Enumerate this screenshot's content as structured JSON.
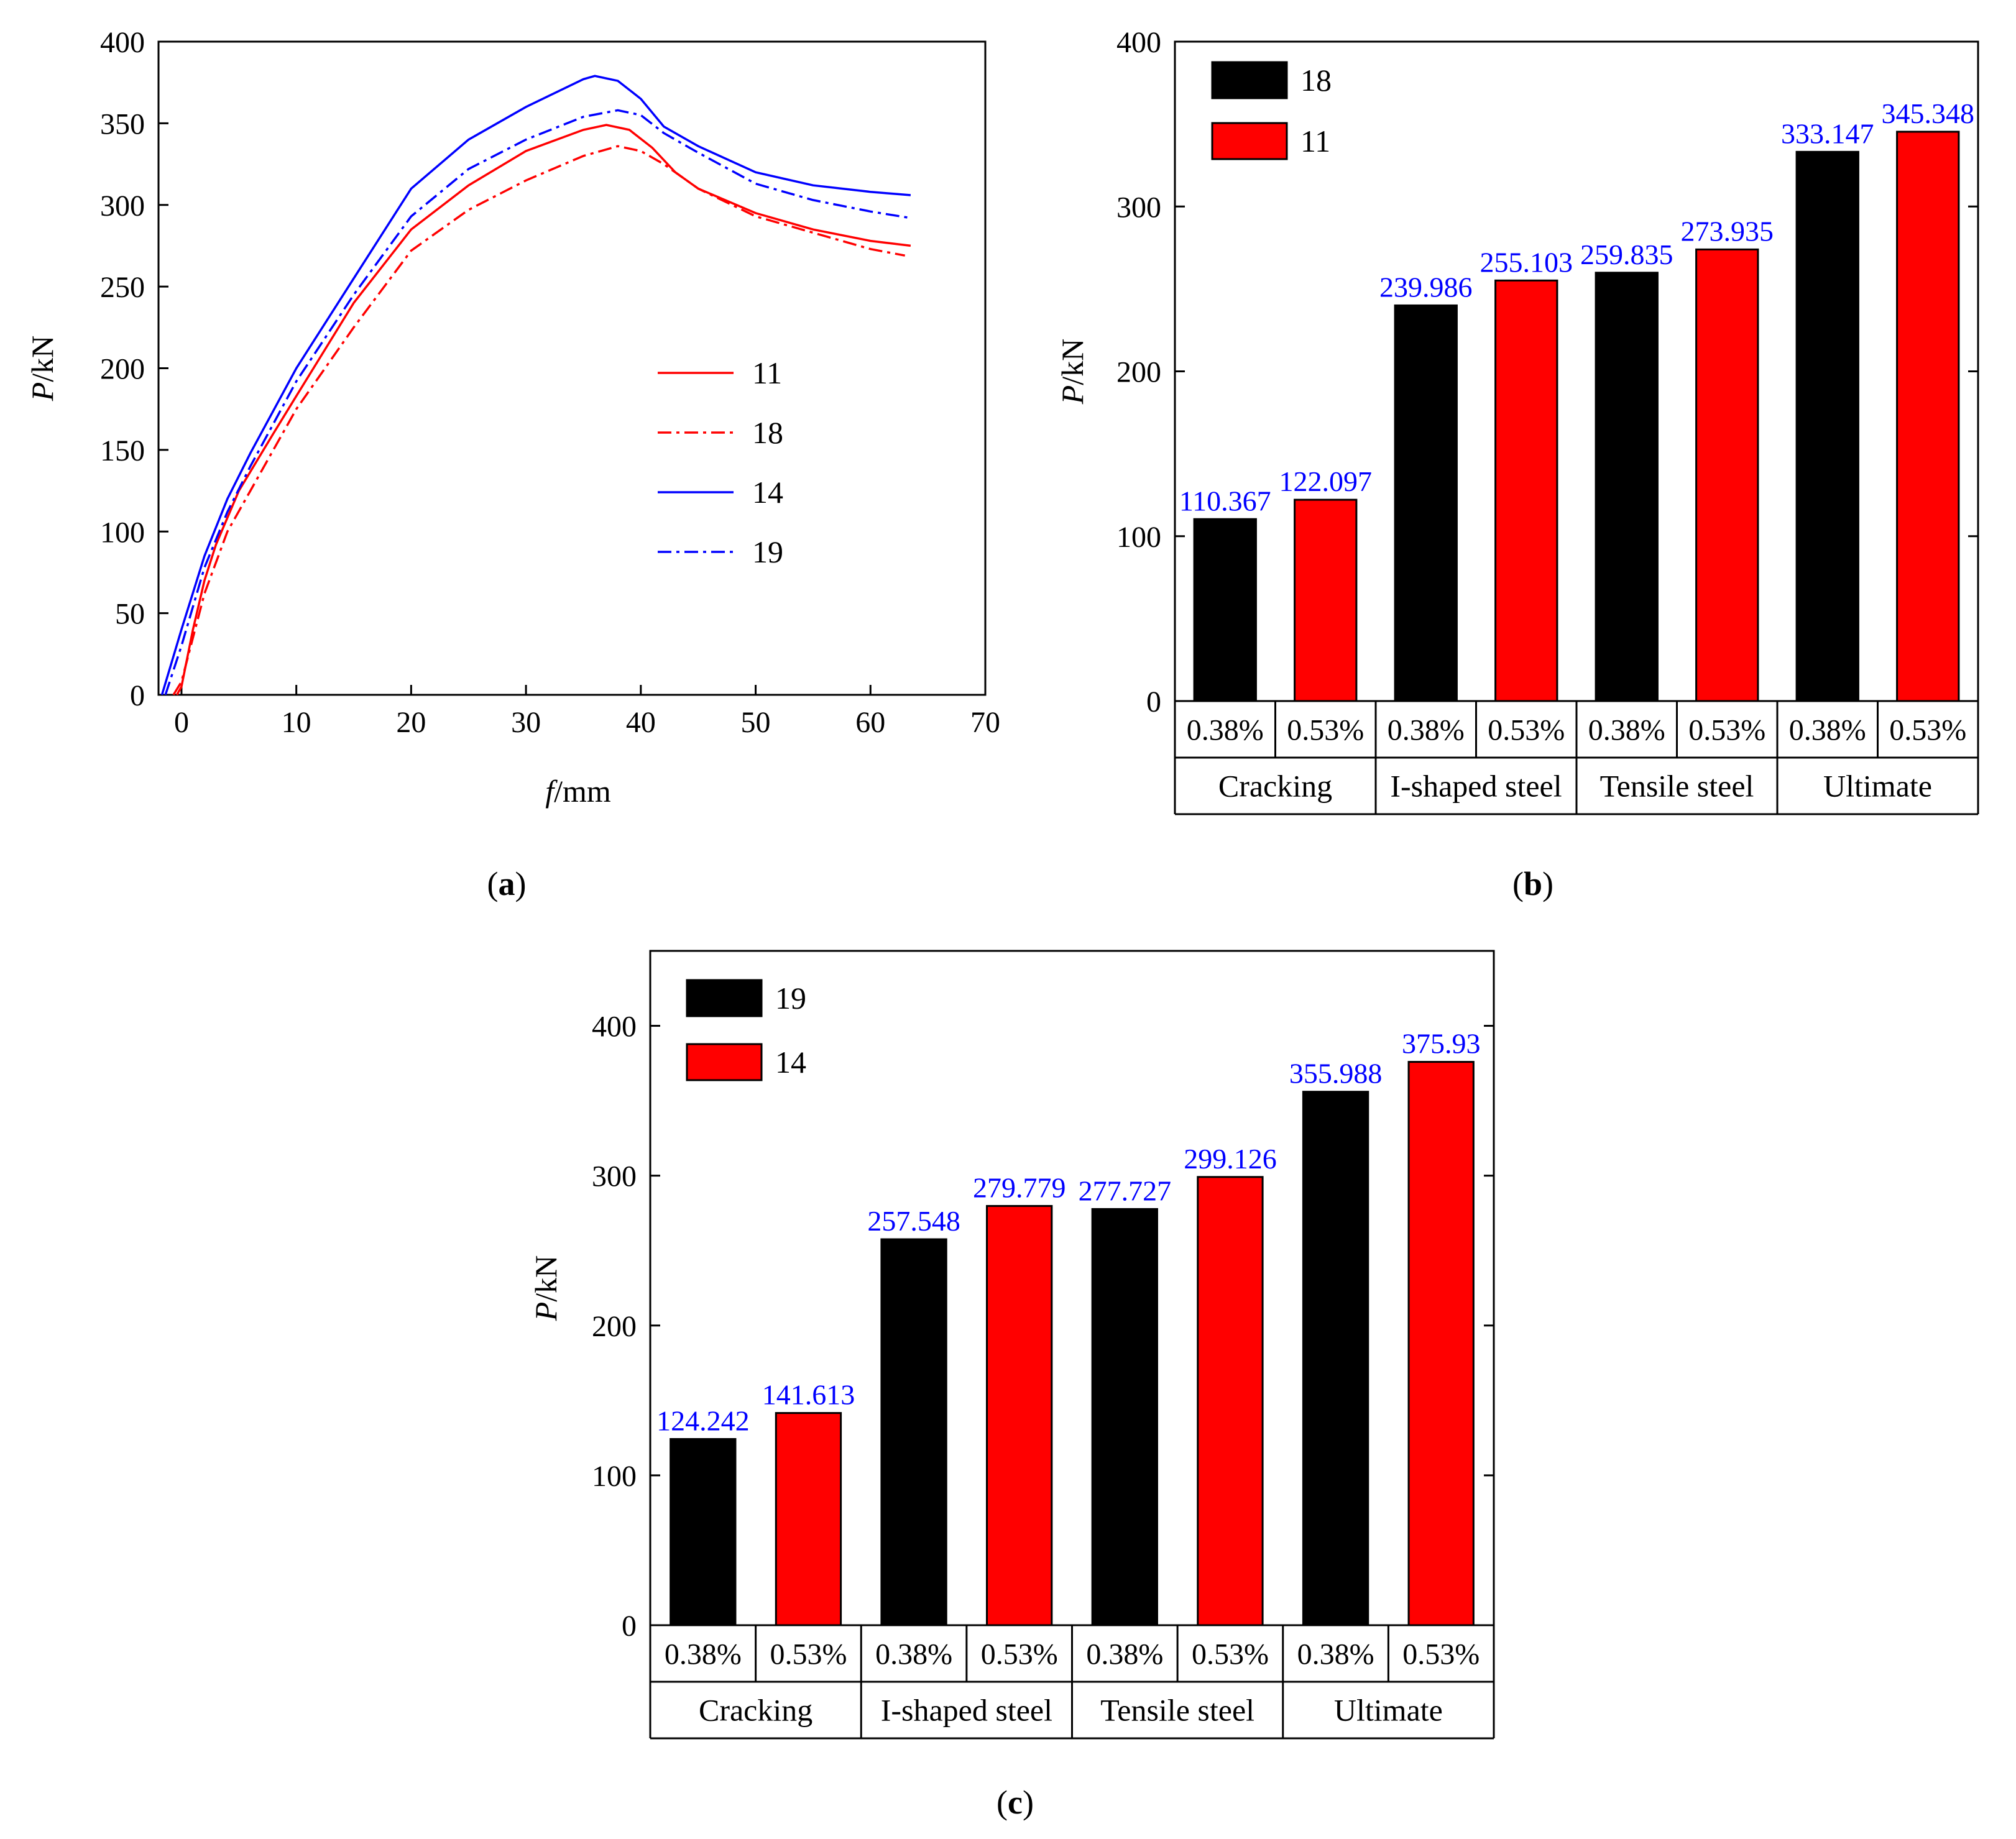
{
  "chart_data": [
    {
      "id": "a",
      "panel_label": "a",
      "type": "line",
      "xlabel_italic": "f",
      "xlabel_unit": "/mm",
      "ylabel_italic": "P",
      "ylabel_unit": "/kN",
      "xlim": [
        -2,
        70
      ],
      "ylim": [
        0,
        400
      ],
      "xticks": [
        0,
        10,
        20,
        30,
        40,
        50,
        60,
        70
      ],
      "yticks": [
        0,
        50,
        100,
        150,
        200,
        250,
        300,
        350,
        400
      ],
      "legend_position": "center-right",
      "series": [
        {
          "name": "11",
          "color": "#ff0000",
          "dash": "solid",
          "points": [
            [
              -0.4,
              0
            ],
            [
              0,
              5
            ],
            [
              1,
              40
            ],
            [
              2,
              70
            ],
            [
              3,
              92
            ],
            [
              5,
              125
            ],
            [
              8,
              160
            ],
            [
              10,
              183
            ],
            [
              15,
              240
            ],
            [
              20,
              285
            ],
            [
              25,
              312
            ],
            [
              30,
              333
            ],
            [
              35,
              346
            ],
            [
              37,
              349
            ],
            [
              39,
              346
            ],
            [
              41,
              335
            ],
            [
              43,
              320
            ],
            [
              45,
              310
            ],
            [
              50,
              295
            ],
            [
              55,
              285
            ],
            [
              60,
              278
            ],
            [
              63.5,
              275
            ]
          ]
        },
        {
          "name": "18",
          "color": "#ff0000",
          "dash": "dashdot",
          "points": [
            [
              -0.7,
              0
            ],
            [
              0,
              8
            ],
            [
              1,
              35
            ],
            [
              2,
              62
            ],
            [
              4,
              100
            ],
            [
              6,
              125
            ],
            [
              10,
              175
            ],
            [
              15,
              225
            ],
            [
              20,
              272
            ],
            [
              25,
              297
            ],
            [
              30,
              315
            ],
            [
              35,
              330
            ],
            [
              38,
              336
            ],
            [
              40,
              333
            ],
            [
              42,
              325
            ],
            [
              45,
              310
            ],
            [
              50,
              293
            ],
            [
              55,
              283
            ],
            [
              60,
              273
            ],
            [
              63,
              269
            ]
          ]
        },
        {
          "name": "14",
          "color": "#0000ff",
          "dash": "solid",
          "points": [
            [
              -1.7,
              0
            ],
            [
              0,
              40
            ],
            [
              2,
              85
            ],
            [
              4,
              120
            ],
            [
              6,
              148
            ],
            [
              10,
              200
            ],
            [
              15,
              255
            ],
            [
              20,
              310
            ],
            [
              25,
              340
            ],
            [
              30,
              360
            ],
            [
              35,
              377
            ],
            [
              36,
              379
            ],
            [
              38,
              376
            ],
            [
              40,
              365
            ],
            [
              42,
              348
            ],
            [
              45,
              336
            ],
            [
              50,
              320
            ],
            [
              55,
              312
            ],
            [
              60,
              308
            ],
            [
              63.5,
              306
            ]
          ]
        },
        {
          "name": "19",
          "color": "#0000ff",
          "dash": "dashdot",
          "points": [
            [
              -1.4,
              0
            ],
            [
              0,
              30
            ],
            [
              2,
              78
            ],
            [
              4,
              112
            ],
            [
              6,
              140
            ],
            [
              10,
              192
            ],
            [
              15,
              245
            ],
            [
              20,
              293
            ],
            [
              25,
              322
            ],
            [
              30,
              340
            ],
            [
              35,
              354
            ],
            [
              38,
              358
            ],
            [
              40,
              355
            ],
            [
              42,
              344
            ],
            [
              45,
              332
            ],
            [
              50,
              313
            ],
            [
              55,
              303
            ],
            [
              60,
              296
            ],
            [
              63.5,
              292
            ]
          ]
        }
      ]
    },
    {
      "id": "b",
      "panel_label": "b",
      "type": "bar",
      "ylabel_italic": "P",
      "ylabel_unit": "/kN",
      "ylim": [
        0,
        400
      ],
      "yticks": [
        0,
        100,
        200,
        300,
        400
      ],
      "groups": [
        "Cracking",
        "I-shaped steel",
        "Tensile steel",
        "Ultimate"
      ],
      "subcategories": [
        "0.38%",
        "0.53%"
      ],
      "legend_position": "top-left",
      "series": [
        {
          "name": "18",
          "color": "#000000",
          "values": [
            110.367,
            239.986,
            259.835,
            333.147
          ],
          "labels": [
            "110.367",
            "239.986",
            "259.835",
            "333.147"
          ]
        },
        {
          "name": "11",
          "color": "#ff0000",
          "values": [
            122.097,
            255.103,
            273.935,
            345.348
          ],
          "labels": [
            "122.097",
            "255.103",
            "273.935",
            "345.348"
          ]
        }
      ],
      "label_color": "#0000ff"
    },
    {
      "id": "c",
      "panel_label": "c",
      "type": "bar",
      "ylabel_italic": "P",
      "ylabel_unit": "/kN",
      "ylim": [
        0,
        450
      ],
      "yticks": [
        0,
        100,
        200,
        300,
        400
      ],
      "groups": [
        "Cracking",
        "I-shaped steel",
        "Tensile steel",
        "Ultimate"
      ],
      "subcategories": [
        "0.38%",
        "0.53%"
      ],
      "legend_position": "top-left",
      "series": [
        {
          "name": "19",
          "color": "#000000",
          "values": [
            124.242,
            257.548,
            277.727,
            355.988
          ],
          "labels": [
            "124.242",
            "257.548",
            "277.727",
            "355.988"
          ]
        },
        {
          "name": "14",
          "color": "#ff0000",
          "values": [
            141.613,
            279.779,
            299.126,
            375.93
          ],
          "labels": [
            "141.613",
            "279.779",
            "299.126",
            "375.93"
          ]
        }
      ],
      "label_color": "#0000ff"
    }
  ]
}
